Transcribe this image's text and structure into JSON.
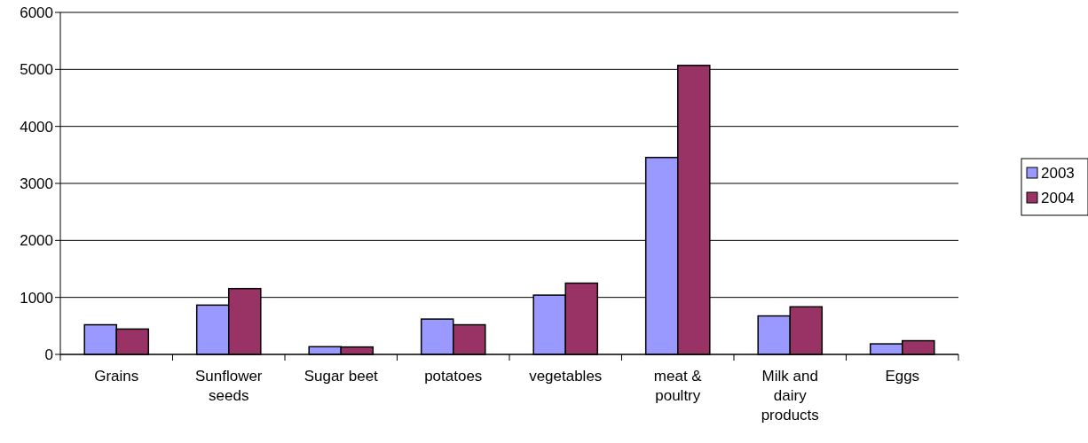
{
  "chart_data": {
    "type": "bar",
    "categories": [
      "Grains",
      "Sunflower seeds",
      "Sugar beet",
      "potatoes",
      "vegetables",
      "meat & poultry",
      "Milk and dairy products",
      "Eggs"
    ],
    "series": [
      {
        "name": "2003",
        "color": "#9999ff",
        "values": [
          520,
          865,
          135,
          620,
          1040,
          3455,
          675,
          185
        ]
      },
      {
        "name": "2004",
        "color": "#993366",
        "values": [
          445,
          1155,
          130,
          520,
          1250,
          5070,
          835,
          240
        ]
      }
    ],
    "ylim": [
      0,
      6000
    ],
    "yticks": [
      0,
      1000,
      2000,
      3000,
      4000,
      5000,
      6000
    ],
    "grid": "y",
    "legend": "right"
  }
}
